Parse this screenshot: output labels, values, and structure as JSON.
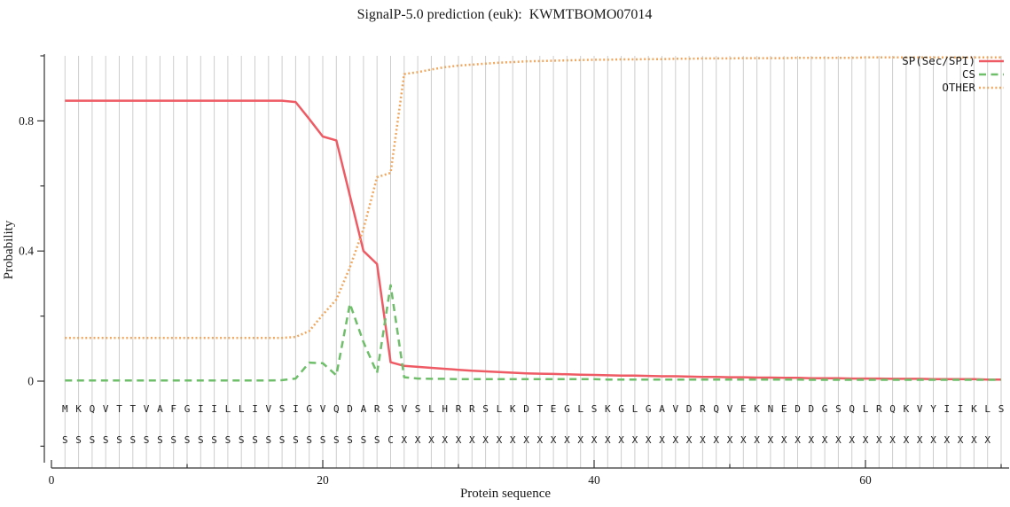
{
  "title": "SignalP-5.0 prediction (euk):  KWMTBOMO07014",
  "colors": {
    "sp_line": "#ee5b64",
    "cs_line": "#6ebe6a",
    "other_line": "#f0a860",
    "grid": "#cdcdcd",
    "axis": "#333333",
    "text": "#1a1a1a"
  },
  "chart_data": {
    "type": "line",
    "title": "SignalP-5.0 prediction (euk):  KWMTBOMO07014",
    "xlabel": "Protein sequence",
    "ylabel": "Probability",
    "xlim": [
      0,
      70.6
    ],
    "ylim": [
      0,
      1.02
    ],
    "grid": "vertical-line-per-residue",
    "legend_position": "top-right",
    "x_ticks_major": [
      0,
      20,
      40,
      60
    ],
    "x_ticks_minor": [
      10,
      30,
      50,
      70
    ],
    "y_ticks_major": [
      0,
      0.4,
      0.8
    ],
    "y_ticks_minor": [
      -0.2,
      0.2,
      0.6,
      1.0
    ],
    "sequence": "MKQVTTVAFGIILLIVSIGVQDARSVSLHRRSLKDTEGLSKGLGAVDRQVEKNEDDGSQLRQKVYIIKLS",
    "annotation": "SSSSSSSSSSSSSSSSSSSSSSSSCXXXXXXXXXXXXXXXXXXXXXXXXXXXXXXXXXXXXXXXXXXXX",
    "series": [
      {
        "name": "SP(Sec/SPI)",
        "style": "solid",
        "color": "#ee5b64",
        "values": [
          0.862,
          0.862,
          0.862,
          0.862,
          0.862,
          0.862,
          0.862,
          0.862,
          0.862,
          0.862,
          0.862,
          0.862,
          0.862,
          0.862,
          0.862,
          0.862,
          0.862,
          0.858,
          0.806,
          0.752,
          0.74,
          0.57,
          0.4,
          0.36,
          0.058,
          0.047,
          0.044,
          0.041,
          0.038,
          0.035,
          0.032,
          0.03,
          0.028,
          0.026,
          0.024,
          0.023,
          0.022,
          0.021,
          0.02,
          0.019,
          0.018,
          0.017,
          0.017,
          0.016,
          0.015,
          0.015,
          0.014,
          0.013,
          0.013,
          0.012,
          0.012,
          0.011,
          0.011,
          0.01,
          0.01,
          0.009,
          0.009,
          0.009,
          0.008,
          0.008,
          0.008,
          0.007,
          0.007,
          0.007,
          0.006,
          0.006,
          0.006,
          0.006,
          0.005,
          0.005
        ]
      },
      {
        "name": "CS",
        "style": "dashed",
        "color": "#6ebe6a",
        "values": [
          0.002,
          0.002,
          0.002,
          0.002,
          0.002,
          0.002,
          0.002,
          0.002,
          0.002,
          0.002,
          0.002,
          0.002,
          0.002,
          0.002,
          0.002,
          0.002,
          0.003,
          0.008,
          0.057,
          0.055,
          0.018,
          0.238,
          0.12,
          0.025,
          0.295,
          0.012,
          0.008,
          0.007,
          0.007,
          0.006,
          0.006,
          0.006,
          0.006,
          0.006,
          0.006,
          0.006,
          0.006,
          0.006,
          0.006,
          0.006,
          0.005,
          0.005,
          0.005,
          0.005,
          0.005,
          0.005,
          0.005,
          0.005,
          0.005,
          0.005,
          0.005,
          0.005,
          0.005,
          0.005,
          0.005,
          0.004,
          0.004,
          0.004,
          0.004,
          0.004,
          0.004,
          0.004,
          0.004,
          0.004,
          0.004,
          0.004,
          0.004,
          0.004,
          0.004,
          0.004
        ]
      },
      {
        "name": "OTHER",
        "style": "dotted",
        "color": "#f0a860",
        "values": [
          0.133,
          0.133,
          0.133,
          0.133,
          0.133,
          0.133,
          0.133,
          0.133,
          0.133,
          0.133,
          0.133,
          0.133,
          0.133,
          0.133,
          0.133,
          0.133,
          0.133,
          0.136,
          0.154,
          0.204,
          0.251,
          0.35,
          0.468,
          0.627,
          0.64,
          0.944,
          0.95,
          0.958,
          0.965,
          0.97,
          0.973,
          0.976,
          0.979,
          0.981,
          0.983,
          0.984,
          0.985,
          0.986,
          0.987,
          0.988,
          0.988,
          0.989,
          0.989,
          0.99,
          0.99,
          0.991,
          0.991,
          0.992,
          0.992,
          0.992,
          0.993,
          0.993,
          0.993,
          0.993,
          0.994,
          0.994,
          0.994,
          0.994,
          0.994,
          0.995,
          0.995,
          0.995,
          0.995,
          0.995,
          0.995,
          0.995,
          0.995,
          0.995,
          0.995,
          0.995
        ]
      }
    ]
  }
}
